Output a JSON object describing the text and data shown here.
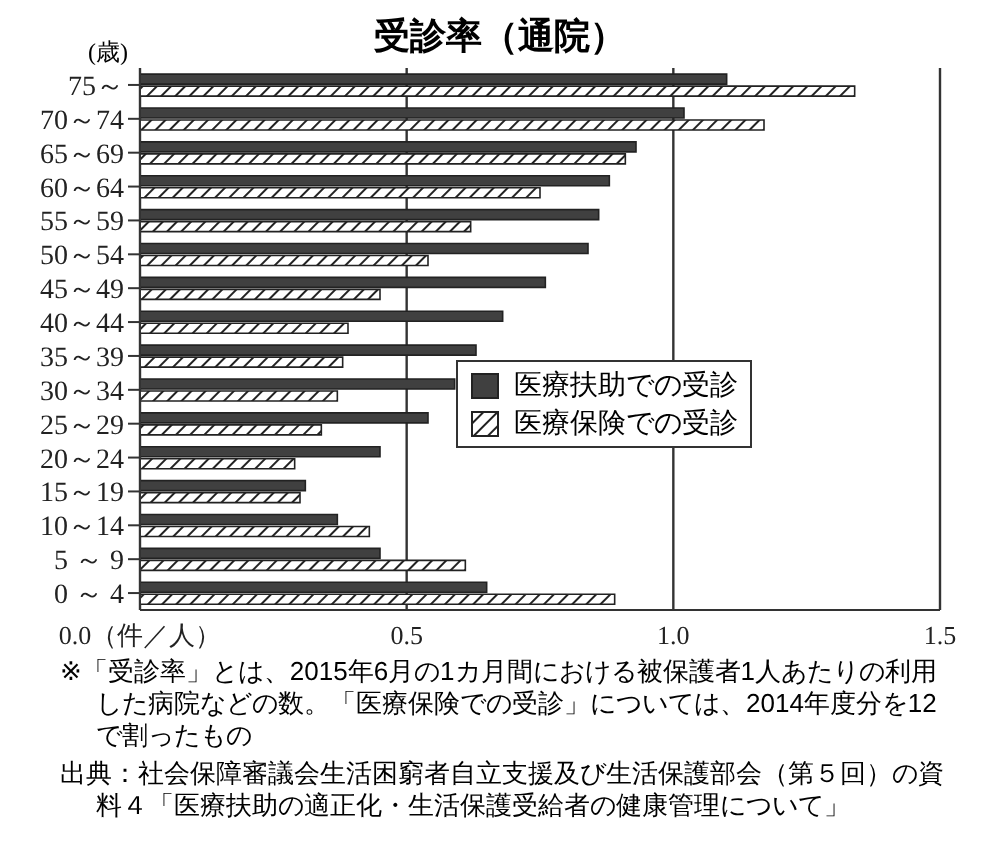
{
  "chart_data": {
    "type": "bar",
    "orientation": "horizontal",
    "title": "受診率（通院）",
    "ylabel": "(歳)",
    "categories": [
      "75～",
      "70～74",
      "65～69",
      "60～64",
      "55～59",
      "50～54",
      "45～49",
      "40～44",
      "35～39",
      "30～34",
      "25～29",
      "20～24",
      "15～19",
      "10～14",
      "5 ～ 9",
      "0 ～ 4"
    ],
    "series": [
      {
        "name": "医療扶助での受診",
        "color": "#404040",
        "values": [
          1.1,
          1.02,
          0.93,
          0.88,
          0.86,
          0.84,
          0.76,
          0.68,
          0.63,
          0.59,
          0.54,
          0.45,
          0.31,
          0.37,
          0.45,
          0.65
        ]
      },
      {
        "name": "医療保険での受診",
        "color": "#222222",
        "values": [
          1.34,
          1.17,
          0.91,
          0.75,
          0.62,
          0.54,
          0.45,
          0.39,
          0.38,
          0.37,
          0.34,
          0.29,
          0.3,
          0.43,
          0.61,
          0.89
        ]
      }
    ],
    "xlim": [
      0,
      1.5
    ],
    "xticks": [
      {
        "value": 0,
        "label": "0.0（件／人）"
      },
      {
        "value": 0.5,
        "label": "0.5"
      },
      {
        "value": 1,
        "label": "1.0"
      },
      {
        "value": 1.5,
        "label": "1.5"
      }
    ],
    "grid": "x",
    "legend": "right",
    "annotations": [
      "※「受診率」とは、2015年6月の1カ月間における被保護者1人あたりの利用した病院などの数。「医療保険での受診」については、2014年度分を12で割ったもの",
      "出典：社会保障審議会生活困窮者自立支援及び生活保護部会（第５回）の資料４「医療扶助の適正化・生活保護受給者の健康管理について」"
    ]
  }
}
